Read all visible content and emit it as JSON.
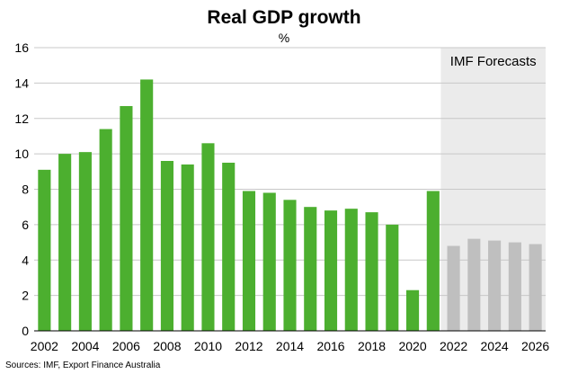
{
  "chart_data": {
    "type": "bar",
    "title": "Real GDP growth",
    "subtitle": "%",
    "forecast_label": "IMF Forecasts",
    "source": "Sources: IMF, Export Finance Australia",
    "categories": [
      "2002",
      "2003",
      "2004",
      "2005",
      "2006",
      "2007",
      "2008",
      "2009",
      "2010",
      "2011",
      "2012",
      "2013",
      "2014",
      "2015",
      "2016",
      "2017",
      "2018",
      "2019",
      "2020",
      "2021",
      "2022",
      "2023",
      "2024",
      "2025",
      "2026"
    ],
    "values": [
      9.1,
      10.0,
      10.1,
      11.4,
      12.7,
      14.2,
      9.6,
      9.4,
      10.6,
      9.5,
      7.9,
      7.8,
      7.4,
      7.0,
      6.8,
      6.9,
      6.7,
      6.0,
      2.3,
      7.9,
      4.8,
      5.2,
      5.1,
      5.0,
      4.9
    ],
    "forecast_start": "2022",
    "x_tick_labels": [
      "2002",
      "2004",
      "2006",
      "2008",
      "2010",
      "2012",
      "2014",
      "2016",
      "2018",
      "2020",
      "2022",
      "2024",
      "2026"
    ],
    "y_tick_labels": [
      "0",
      "2",
      "4",
      "6",
      "8",
      "10",
      "12",
      "14",
      "16"
    ],
    "ylim": [
      0,
      16
    ],
    "grid": true,
    "colors": {
      "actual": "#4caf2f",
      "forecast": "#bfbfbf",
      "forecast_shade": "#ebebeb",
      "grid": "#c8c8c8"
    }
  }
}
